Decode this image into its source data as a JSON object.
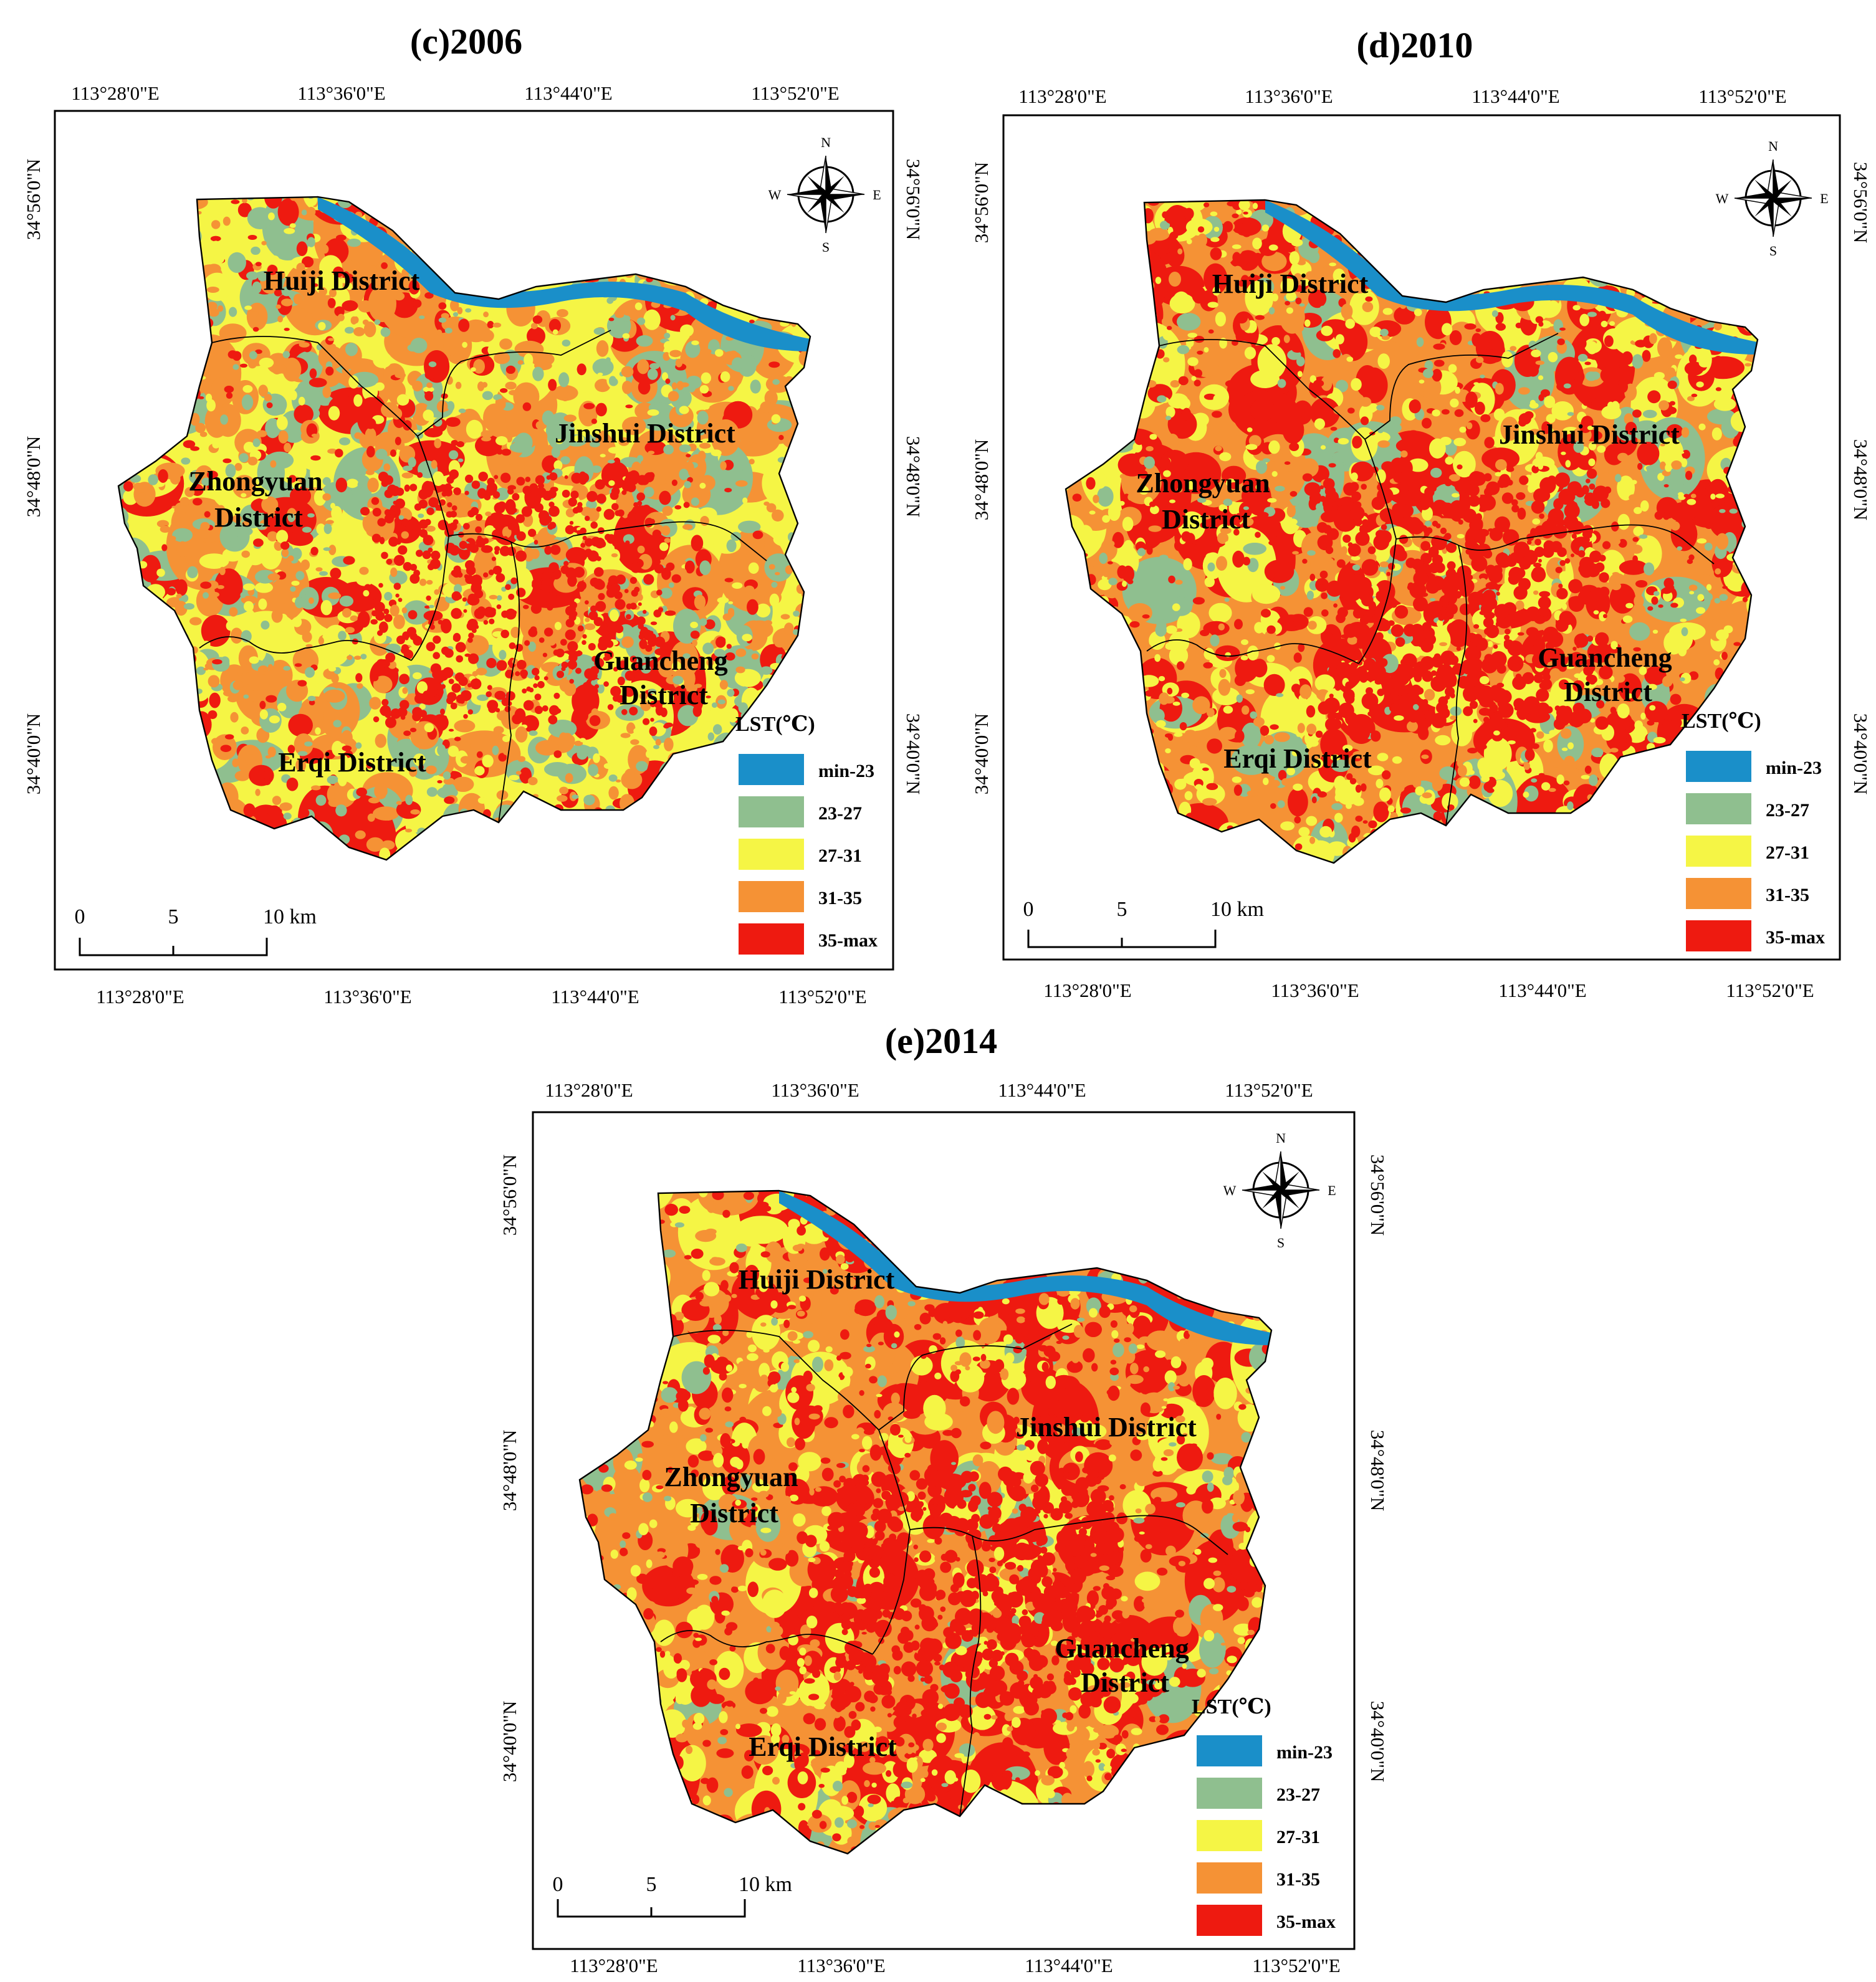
{
  "colors": {
    "min-23": "#1a8fc9",
    "23-27": "#8fbf8f",
    "27-31": "#f5f545",
    "31-35": "#f59235",
    "35-max": "#ee1a10"
  },
  "legend": {
    "title": "LST(℃)",
    "classes": [
      "min-23",
      "23-27",
      "27-31",
      "31-35",
      "35-max"
    ]
  },
  "scale": {
    "labels": [
      "0",
      "5",
      "10 km"
    ]
  },
  "compass": {
    "n": "N",
    "s": "S",
    "e": "E",
    "w": "W"
  },
  "coords": {
    "lon": [
      "113°28'0\"E",
      "113°36'0\"E",
      "113°44'0\"E",
      "113°52'0\"E"
    ],
    "lat": [
      "34°56'0\"N",
      "34°48'0\"N",
      "34°40'0\"N"
    ]
  },
  "districts": {
    "huiji": "Huiji District",
    "jinshui": "Jinshui District",
    "zhongyuan_1": "Zhongyuan",
    "zhongyuan_2": "District",
    "guancheng_1": "Guancheng",
    "guancheng_2": "District",
    "erqi": "Erqi District"
  },
  "maps": [
    {
      "title": "(c)2006",
      "class_mix": {
        "min-23": 0.03,
        "23-27": 0.18,
        "27-31": 0.34,
        "31-35": 0.3,
        "35-max": 0.15
      }
    },
    {
      "title": "(d)2010",
      "class_mix": {
        "min-23": 0.02,
        "23-27": 0.09,
        "27-31": 0.27,
        "31-35": 0.36,
        "35-max": 0.26
      }
    },
    {
      "title": "(e)2014",
      "class_mix": {
        "min-23": 0.02,
        "23-27": 0.05,
        "27-31": 0.18,
        "31-35": 0.47,
        "35-max": 0.28
      }
    }
  ]
}
